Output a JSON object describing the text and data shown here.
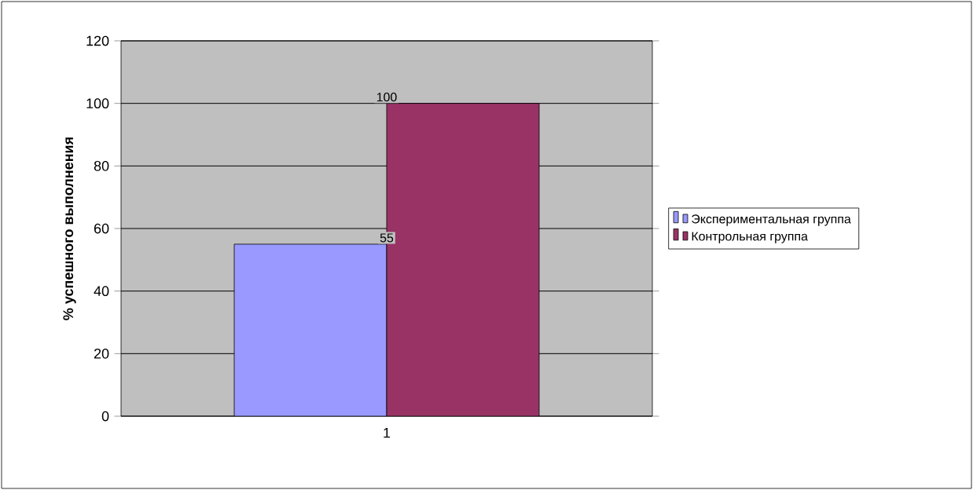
{
  "chart_data": {
    "type": "bar",
    "ylabel": "% успешного выполнения",
    "categories": [
      "1"
    ],
    "series": [
      {
        "name": "Экспериментальная группа",
        "color": "#9999ff",
        "values": [
          55
        ]
      },
      {
        "name": "Контрольная группа",
        "color": "#993366",
        "values": [
          100
        ]
      }
    ],
    "ylim": [
      0,
      120
    ],
    "yticks": [
      0,
      20,
      40,
      60,
      80,
      100,
      120
    ],
    "grid": "y",
    "legend": "right",
    "data_labels": true
  }
}
